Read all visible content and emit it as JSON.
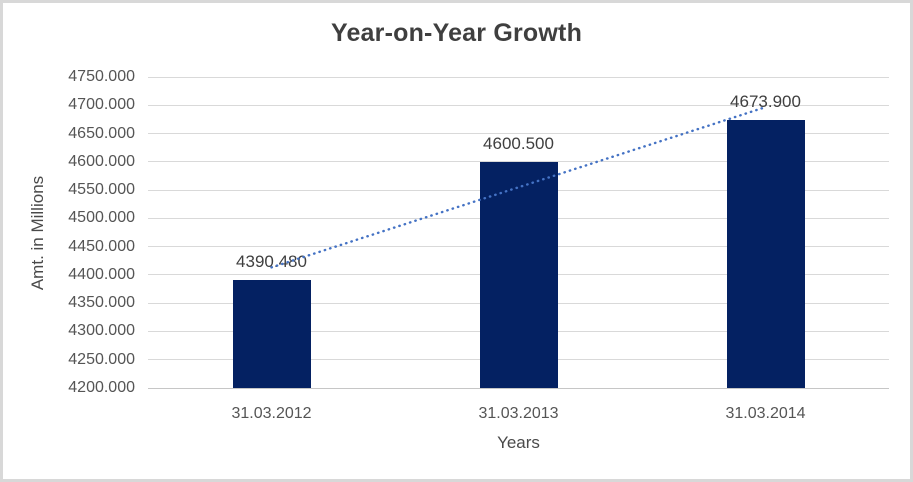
{
  "chart_data": {
    "type": "bar",
    "title": "Year-on-Year Growth",
    "xlabel": "Years",
    "ylabel": "Amt. in Millions",
    "categories": [
      "31.03.2012",
      "31.03.2013",
      "31.03.2014"
    ],
    "values": [
      4390.48,
      4600.5,
      4673.9
    ],
    "value_labels": [
      "4390.480",
      "4600.500",
      "4673.900"
    ],
    "y_tick_labels": [
      "4750.000",
      "4700.000",
      "4650.000",
      "4600.000",
      "4550.000",
      "4500.000",
      "4450.000",
      "4400.000",
      "4350.000",
      "4300.000",
      "4250.000",
      "4200.000"
    ],
    "ylim": [
      4200,
      4750
    ],
    "grid": true,
    "legend": "none",
    "trendline": {
      "type": "linear",
      "style": "dotted"
    },
    "colors": {
      "bar": "#042162",
      "trendline": "#4472c4",
      "gridline": "#d9d9d9",
      "axis_line": "#c6c6c6",
      "tick_text": "#555555",
      "label_text": "#3f3f3f",
      "frame_border": "#d8d8d8",
      "background": "#ffffff"
    }
  }
}
